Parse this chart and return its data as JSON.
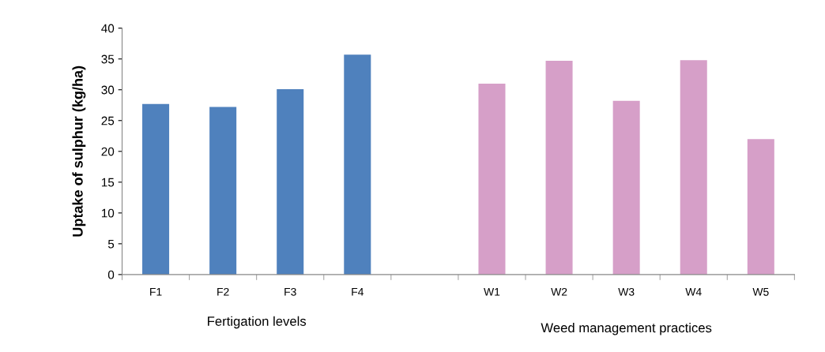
{
  "chart_data": {
    "type": "bar",
    "ylabel": "Uptake of sulphur (kg/ha)",
    "categories": [
      "F1",
      "F2",
      "F3",
      "F4",
      null,
      "W1",
      "W2",
      "W3",
      "W4",
      "W5"
    ],
    "values": [
      27.7,
      27.2,
      30.1,
      35.7,
      null,
      31.0,
      34.7,
      28.2,
      34.8,
      22.0
    ],
    "colors": [
      "#4f81bd",
      "#4f81bd",
      "#4f81bd",
      "#4f81bd",
      null,
      "#d69fc8",
      "#d69fc8",
      "#d69fc8",
      "#d69fc8",
      "#d69fc8"
    ],
    "ylim": [
      0,
      40
    ],
    "yticks": [
      0,
      5,
      10,
      15,
      20,
      25,
      30,
      35,
      40
    ],
    "grid": false,
    "annotations": [
      "Fertigation levels",
      "Weed management practices"
    ]
  }
}
